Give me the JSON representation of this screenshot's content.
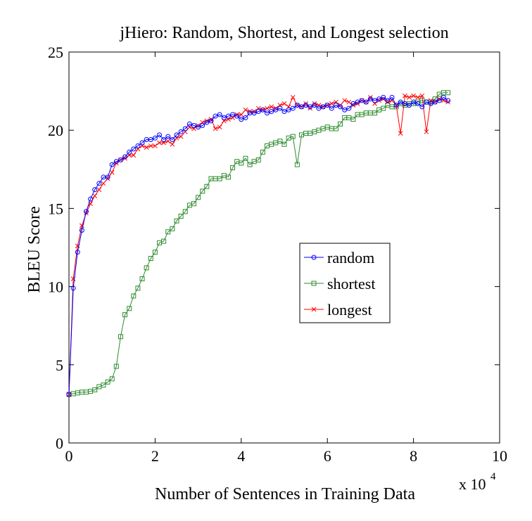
{
  "chart_data": {
    "type": "line",
    "title": "jHiero: Random, Shortest, and Longest selection",
    "xlabel": "Number of Sentences in Training Data",
    "ylabel": "BLEU Score",
    "x_multiplier": "x 10",
    "x_multiplier_exp": "4",
    "xlim": [
      0,
      10
    ],
    "ylim": [
      0,
      25
    ],
    "xticks": [
      "0",
      "2",
      "4",
      "6",
      "8",
      "10"
    ],
    "yticks": [
      "0",
      "5",
      "10",
      "15",
      "20",
      "25"
    ],
    "grid": false,
    "legend_position": "center-right",
    "series": [
      {
        "name": "random",
        "color": "#0000ff",
        "marker": "circle",
        "x": [
          0.0,
          0.1,
          0.2,
          0.3,
          0.4,
          0.5,
          0.6,
          0.7,
          0.8,
          0.9,
          1.0,
          1.1,
          1.2,
          1.3,
          1.4,
          1.5,
          1.6,
          1.7,
          1.8,
          1.9,
          2.0,
          2.1,
          2.2,
          2.3,
          2.4,
          2.5,
          2.6,
          2.7,
          2.8,
          2.9,
          3.0,
          3.1,
          3.2,
          3.3,
          3.4,
          3.5,
          3.6,
          3.7,
          3.8,
          3.9,
          4.0,
          4.1,
          4.2,
          4.3,
          4.4,
          4.5,
          4.6,
          4.7,
          4.8,
          4.9,
          5.0,
          5.1,
          5.2,
          5.3,
          5.4,
          5.5,
          5.6,
          5.7,
          5.8,
          5.9,
          6.0,
          6.1,
          6.2,
          6.3,
          6.4,
          6.5,
          6.6,
          6.7,
          6.8,
          6.9,
          7.0,
          7.1,
          7.2,
          7.3,
          7.4,
          7.5,
          7.6,
          7.7,
          7.8,
          7.9,
          8.0,
          8.1,
          8.2,
          8.3,
          8.4,
          8.5,
          8.6,
          8.7,
          8.8
        ],
        "y": [
          3.1,
          9.9,
          12.2,
          13.6,
          14.8,
          15.6,
          16.2,
          16.6,
          17.0,
          17.0,
          17.8,
          18.0,
          18.1,
          18.3,
          18.6,
          18.8,
          19.0,
          19.2,
          19.4,
          19.4,
          19.5,
          19.7,
          19.4,
          19.6,
          19.4,
          19.7,
          19.9,
          20.1,
          20.4,
          20.3,
          20.2,
          20.3,
          20.5,
          20.6,
          20.9,
          21.0,
          20.8,
          20.9,
          21.0,
          20.9,
          20.7,
          20.8,
          21.1,
          21.1,
          21.2,
          21.3,
          21.1,
          21.2,
          21.3,
          21.4,
          21.2,
          21.3,
          21.4,
          21.6,
          21.5,
          21.6,
          21.5,
          21.6,
          21.4,
          21.5,
          21.6,
          21.4,
          21.6,
          21.5,
          21.3,
          21.4,
          21.7,
          21.8,
          21.9,
          21.8,
          22.0,
          21.9,
          22.0,
          22.1,
          21.9,
          22.1,
          21.6,
          21.8,
          21.7,
          21.6,
          21.8,
          21.7,
          21.5,
          21.8,
          21.7,
          21.8,
          21.9,
          22.1,
          21.9
        ]
      },
      {
        "name": "shortest",
        "color": "#2e8b2e",
        "marker": "square",
        "x": [
          0.0,
          0.1,
          0.2,
          0.3,
          0.4,
          0.5,
          0.6,
          0.7,
          0.8,
          0.9,
          1.0,
          1.1,
          1.2,
          1.3,
          1.4,
          1.5,
          1.6,
          1.7,
          1.8,
          1.9,
          2.0,
          2.1,
          2.2,
          2.3,
          2.4,
          2.5,
          2.6,
          2.7,
          2.8,
          2.9,
          3.0,
          3.1,
          3.2,
          3.3,
          3.4,
          3.5,
          3.6,
          3.7,
          3.8,
          3.9,
          4.0,
          4.1,
          4.2,
          4.3,
          4.4,
          4.5,
          4.6,
          4.7,
          4.8,
          4.9,
          5.0,
          5.1,
          5.2,
          5.3,
          5.4,
          5.5,
          5.6,
          5.7,
          5.8,
          5.9,
          6.0,
          6.1,
          6.2,
          6.3,
          6.4,
          6.5,
          6.6,
          6.7,
          6.8,
          6.9,
          7.0,
          7.1,
          7.2,
          7.3,
          7.4,
          7.5,
          7.6,
          7.7,
          7.8,
          7.9,
          8.0,
          8.1,
          8.2,
          8.3,
          8.4,
          8.5,
          8.6,
          8.7,
          8.8
        ],
        "y": [
          3.1,
          3.15,
          3.2,
          3.25,
          3.25,
          3.3,
          3.4,
          3.6,
          3.7,
          3.9,
          4.1,
          4.9,
          6.8,
          8.2,
          8.6,
          9.4,
          9.9,
          10.5,
          11.2,
          11.8,
          12.2,
          12.8,
          12.9,
          13.5,
          13.7,
          14.2,
          14.5,
          14.8,
          15.2,
          15.3,
          15.7,
          16.1,
          16.4,
          16.9,
          16.9,
          16.9,
          17.1,
          17.0,
          17.6,
          18.0,
          17.9,
          18.2,
          17.8,
          18.0,
          18.1,
          18.6,
          19.0,
          19.1,
          19.2,
          19.3,
          19.1,
          19.5,
          19.6,
          17.8,
          19.7,
          19.8,
          19.8,
          19.9,
          20.0,
          20.1,
          20.2,
          20.1,
          20.1,
          20.4,
          20.8,
          20.8,
          20.7,
          21.0,
          21.0,
          21.1,
          21.1,
          21.1,
          21.3,
          21.4,
          21.6,
          21.5,
          21.5,
          21.7,
          21.6,
          21.7,
          21.7,
          21.8,
          21.9,
          21.8,
          21.8,
          22.0,
          22.3,
          22.4,
          22.4
        ]
      },
      {
        "name": "longest",
        "color": "#ff0000",
        "marker": "x",
        "x": [
          0.0,
          0.1,
          0.2,
          0.3,
          0.4,
          0.5,
          0.6,
          0.7,
          0.8,
          0.9,
          1.0,
          1.1,
          1.2,
          1.3,
          1.4,
          1.5,
          1.6,
          1.7,
          1.8,
          1.9,
          2.0,
          2.1,
          2.2,
          2.3,
          2.4,
          2.5,
          2.6,
          2.7,
          2.8,
          2.9,
          3.0,
          3.1,
          3.2,
          3.3,
          3.4,
          3.5,
          3.6,
          3.7,
          3.8,
          3.9,
          4.0,
          4.1,
          4.2,
          4.3,
          4.4,
          4.5,
          4.6,
          4.7,
          4.8,
          4.9,
          5.0,
          5.1,
          5.2,
          5.3,
          5.4,
          5.5,
          5.6,
          5.7,
          5.8,
          5.9,
          6.0,
          6.1,
          6.2,
          6.3,
          6.4,
          6.5,
          6.6,
          6.7,
          6.8,
          6.9,
          7.0,
          7.1,
          7.2,
          7.3,
          7.4,
          7.5,
          7.6,
          7.7,
          7.8,
          7.9,
          8.0,
          8.1,
          8.2,
          8.3,
          8.4,
          8.5,
          8.6,
          8.7,
          8.8
        ],
        "y": [
          3.1,
          10.5,
          12.6,
          13.9,
          14.7,
          15.3,
          15.8,
          16.2,
          16.6,
          16.9,
          17.3,
          17.9,
          18.1,
          18.2,
          18.4,
          18.4,
          18.8,
          19.0,
          18.9,
          19.0,
          19.0,
          19.2,
          19.2,
          19.3,
          19.1,
          19.5,
          19.6,
          19.9,
          20.2,
          20.1,
          20.3,
          20.5,
          20.6,
          20.7,
          20.1,
          20.2,
          20.6,
          20.7,
          20.8,
          21.0,
          21.0,
          21.3,
          21.2,
          21.2,
          21.4,
          21.3,
          21.4,
          21.5,
          21.4,
          21.6,
          21.7,
          21.5,
          22.1,
          21.6,
          21.5,
          21.7,
          21.4,
          21.7,
          21.6,
          21.5,
          21.6,
          21.7,
          21.8,
          21.6,
          21.9,
          21.8,
          21.6,
          21.7,
          21.9,
          21.8,
          22.1,
          21.7,
          21.9,
          22.0,
          21.8,
          21.9,
          21.6,
          19.8,
          22.2,
          22.1,
          22.2,
          22.1,
          22.2,
          19.9,
          21.9,
          21.8,
          22.0,
          21.9,
          21.8
        ]
      }
    ]
  }
}
